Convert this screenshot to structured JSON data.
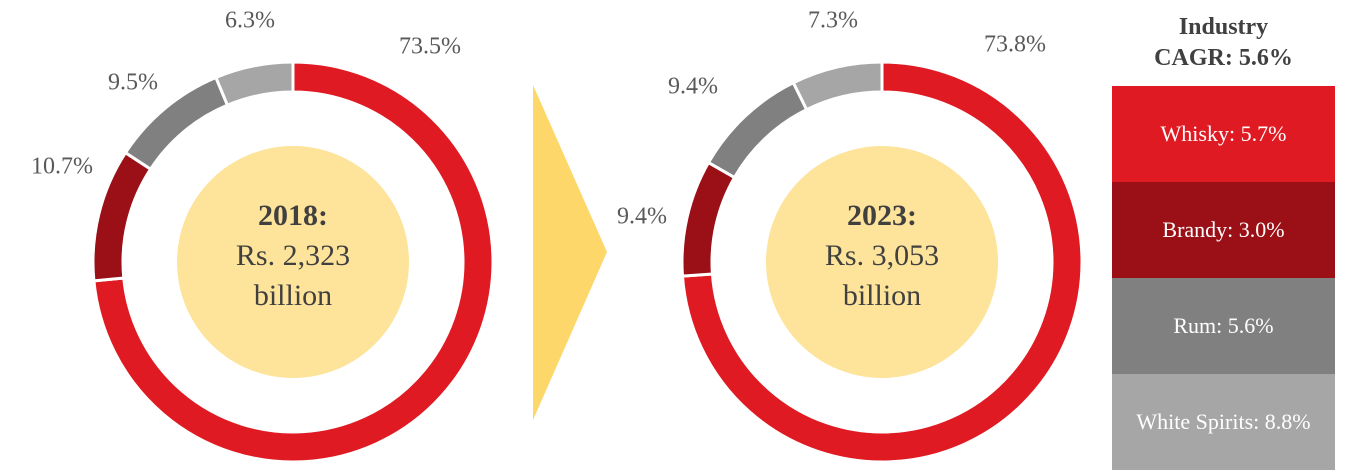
{
  "chart_data": [
    {
      "type": "donut",
      "center_title": "2018:",
      "center_lines": [
        "Rs. 2,323",
        "billion"
      ],
      "values": [
        73.5,
        10.7,
        9.5,
        6.3
      ],
      "value_labels": [
        "73.5%",
        "10.7%",
        "9.5%",
        "6.3%"
      ],
      "colors": [
        "#e01a22",
        "#9b1016",
        "#808080",
        "#a6a6a6"
      ]
    },
    {
      "type": "donut",
      "center_title": "2023:",
      "center_lines": [
        "Rs. 3,053",
        "billion"
      ],
      "values": [
        73.8,
        9.4,
        9.4,
        7.3
      ],
      "value_labels": [
        "73.8%",
        "9.4%",
        "9.4%",
        "7.3%"
      ],
      "colors": [
        "#e01a22",
        "#9b1016",
        "#808080",
        "#a6a6a6"
      ]
    }
  ],
  "legend": {
    "title": "Industry CAGR: 5.6%",
    "items": [
      {
        "label": "Whisky: 5.7%",
        "color": "#e01a22"
      },
      {
        "label": "Brandy: 3.0%",
        "color": "#9b1016"
      },
      {
        "label": "Rum: 5.6%",
        "color": "#808080"
      },
      {
        "label": "White Spirits: 8.8%",
        "color": "#a6a6a6"
      }
    ]
  }
}
